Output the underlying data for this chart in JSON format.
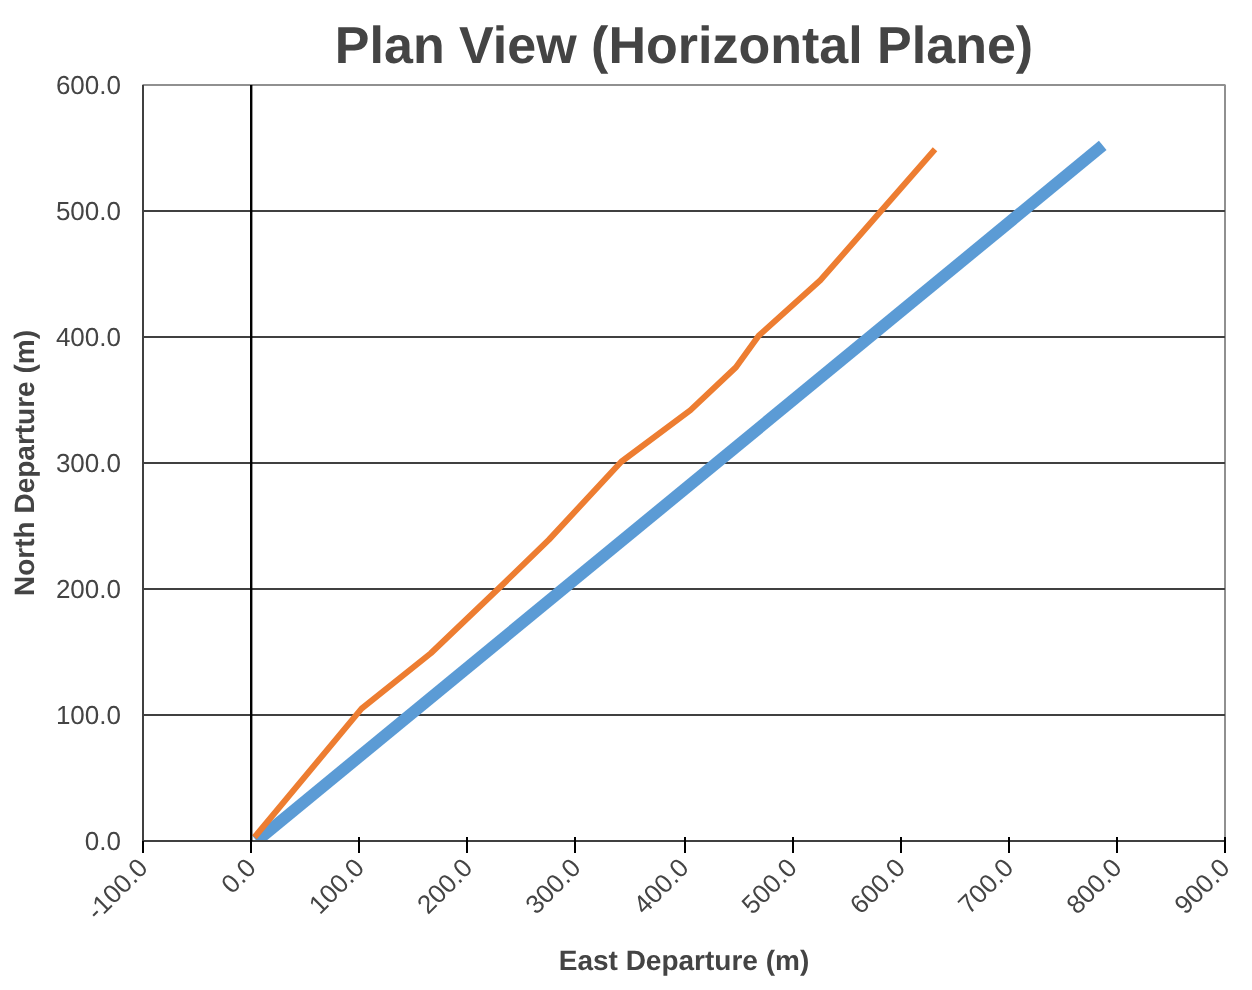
{
  "chart_data": {
    "type": "line",
    "title": "Plan View (Horizontal Plane)",
    "xlabel": "East Departure (m)",
    "ylabel": "North Departure (m)",
    "xlim": [
      -100,
      900
    ],
    "ylim": [
      0,
      600
    ],
    "xticks": [
      {
        "value": -100,
        "label": "-100.0"
      },
      {
        "value": 0,
        "label": "0.0"
      },
      {
        "value": 100,
        "label": "100.0"
      },
      {
        "value": 200,
        "label": "200.0"
      },
      {
        "value": 300,
        "label": "300.0"
      },
      {
        "value": 400,
        "label": "400.0"
      },
      {
        "value": 500,
        "label": "500.0"
      },
      {
        "value": 600,
        "label": "600.0"
      },
      {
        "value": 700,
        "label": "700.0"
      },
      {
        "value": 800,
        "label": "800.0"
      },
      {
        "value": 900,
        "label": "900.0"
      }
    ],
    "yticks": [
      {
        "value": 0,
        "label": "0.0"
      },
      {
        "value": 100,
        "label": "100.0"
      },
      {
        "value": 200,
        "label": "200.0"
      },
      {
        "value": 300,
        "label": "300.0"
      },
      {
        "value": 400,
        "label": "400.0"
      },
      {
        "value": 500,
        "label": "500.0"
      },
      {
        "value": 600,
        "label": "600.0"
      }
    ],
    "grid": "y",
    "marker": "none",
    "ref_lines": [
      {
        "axis": "x",
        "value": 0,
        "color": "#000000"
      }
    ],
    "series": [
      {
        "color": "#5b9bd5",
        "x": [
          5,
          787
        ],
        "values": [
          0,
          552
        ]
      },
      {
        "color": "#ed7d31",
        "x": [
          3,
          102,
          166,
          233,
          275,
          342,
          406,
          448,
          469,
          526,
          575,
          632
        ],
        "values": [
          3,
          105,
          149,
          204,
          239,
          301,
          342,
          376,
          401,
          445,
          493,
          549
        ]
      }
    ]
  }
}
